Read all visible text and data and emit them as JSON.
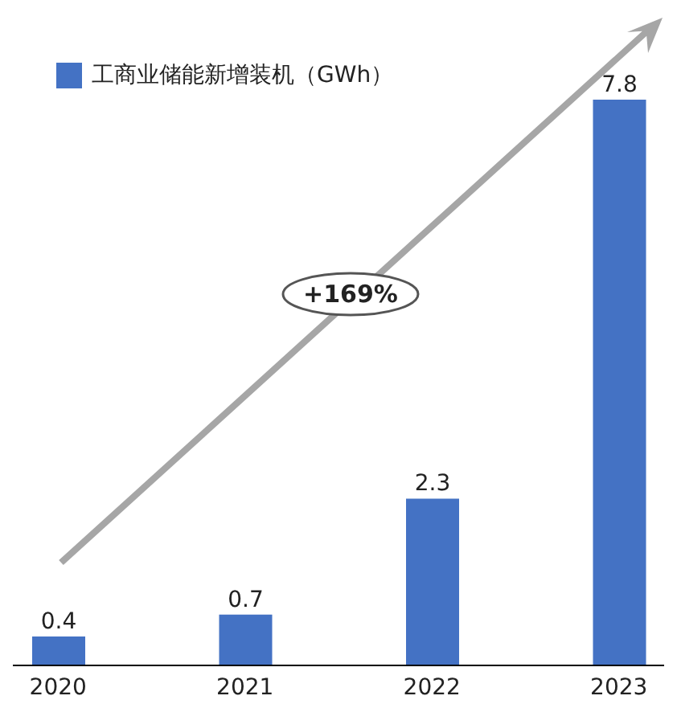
{
  "chart_data": {
    "type": "bar",
    "categories": [
      "2020",
      "2021",
      "2022",
      "2023"
    ],
    "series": [
      {
        "name": "工商业储能新增装机（GWh）",
        "color": "#4472c4",
        "values": [
          0.4,
          0.7,
          2.3,
          7.8
        ]
      }
    ],
    "data_labels": true,
    "legend": "top left",
    "annotations": [
      "+169%"
    ]
  }
}
